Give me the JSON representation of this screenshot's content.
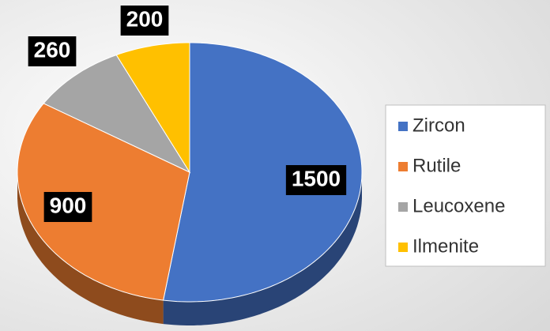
{
  "chart_data": {
    "type": "pie",
    "categories": [
      "Zircon",
      "Rutile",
      "Leucoxene",
      "Ilmenite"
    ],
    "values": [
      1500,
      900,
      260,
      200
    ],
    "colors": [
      "#4472c4",
      "#ed7d31",
      "#a5a5a5",
      "#ffc000"
    ],
    "legend": "right"
  }
}
